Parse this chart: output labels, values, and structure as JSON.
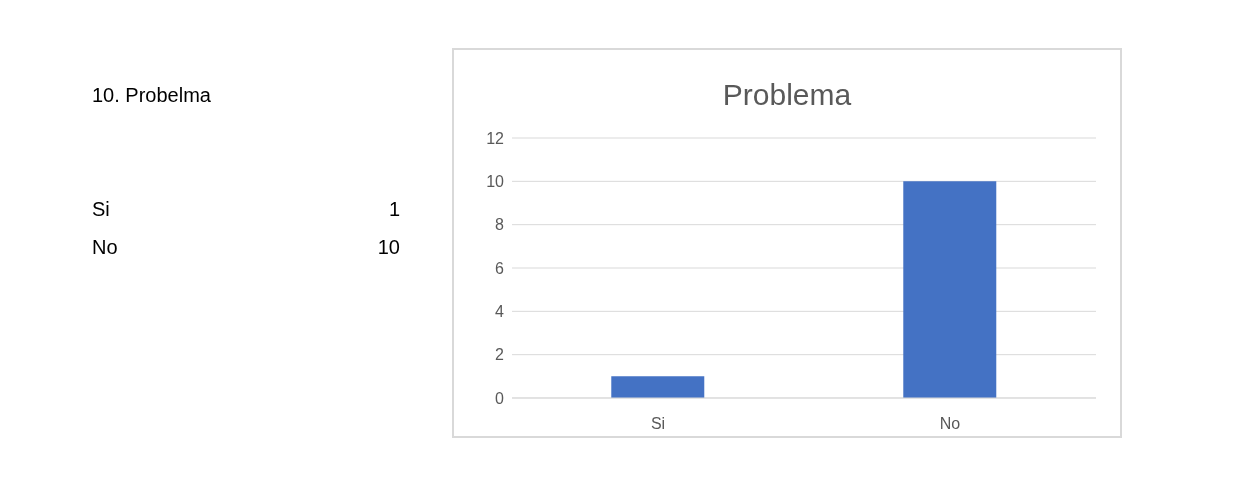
{
  "chart_data": [
    {
      "type": "other",
      "title": "10. Probelma",
      "categories": [
        "Si",
        "No"
      ],
      "values": [
        1,
        10
      ],
      "data_labels": true
    },
    {
      "type": "bar",
      "title": "Problema",
      "categories": [
        "Si",
        "No"
      ],
      "values": [
        1,
        10
      ],
      "color": "#4472c4",
      "ylim": [
        0,
        12
      ],
      "yticks": [
        0,
        2,
        4,
        6,
        8,
        10,
        12
      ],
      "grid": "y"
    }
  ]
}
